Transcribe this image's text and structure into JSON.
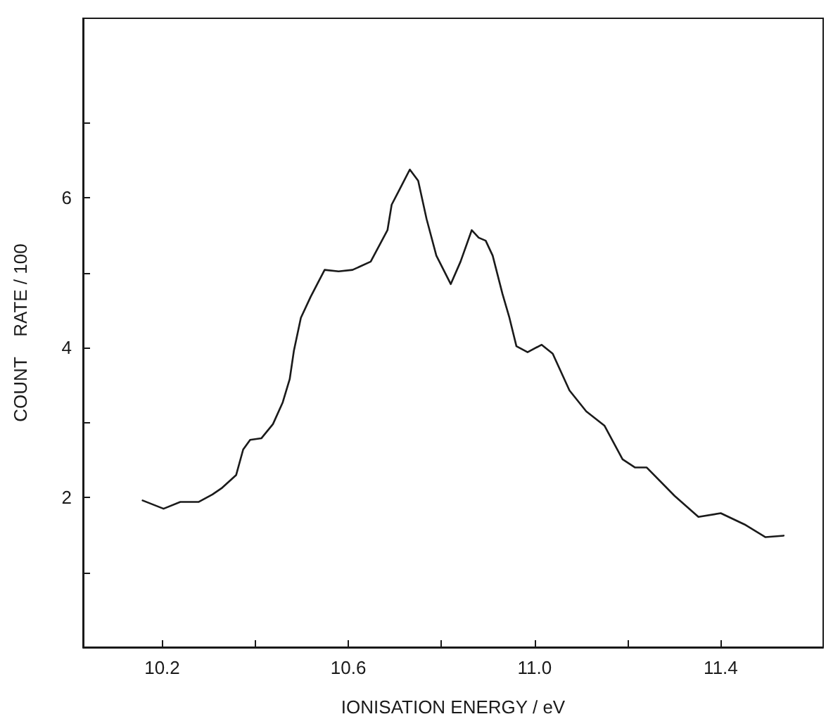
{
  "chart_data": {
    "type": "line",
    "xlabel": "IONISATION ENERGY / eV",
    "ylabel": "COUNT    RATE / 100",
    "x": [
      10.158,
      10.203,
      10.239,
      10.278,
      10.308,
      10.329,
      10.359,
      10.374,
      10.389,
      10.413,
      10.438,
      10.459,
      10.474,
      10.483,
      10.498,
      10.519,
      10.549,
      10.579,
      10.609,
      10.648,
      10.684,
      10.693,
      10.708,
      10.732,
      10.75,
      10.768,
      10.789,
      10.82,
      10.841,
      10.865,
      10.88,
      10.895,
      10.91,
      10.931,
      10.946,
      10.961,
      10.985,
      11.015,
      11.039,
      11.075,
      11.111,
      11.15,
      11.189,
      11.216,
      11.241,
      11.301,
      11.352,
      11.4,
      11.451,
      11.496,
      11.535
    ],
    "series": [
      {
        "color": "#1a1a1a",
        "values": [
          1.96,
          1.85,
          1.94,
          1.94,
          2.04,
          2.13,
          2.3,
          2.64,
          2.77,
          2.79,
          2.98,
          3.27,
          3.58,
          3.96,
          4.4,
          4.68,
          5.04,
          5.02,
          5.04,
          5.15,
          5.57,
          5.91,
          6.09,
          6.38,
          6.23,
          5.72,
          5.23,
          4.85,
          5.15,
          5.57,
          5.47,
          5.43,
          5.23,
          4.72,
          4.4,
          4.02,
          3.94,
          4.04,
          3.92,
          3.43,
          3.15,
          2.96,
          2.51,
          2.4,
          2.4,
          2.02,
          1.74,
          1.79,
          1.64,
          1.47,
          1.49
        ]
      }
    ],
    "xlim": [
      10.03,
      11.62
    ],
    "ylim": [
      0,
      8.4
    ],
    "xticks": [
      10.2,
      {
        "value": 10.4,
        "label": null
      },
      10.6,
      {
        "value": 10.8,
        "label": null
      },
      {
        "value": 11,
        "label": "11.0"
      },
      {
        "value": 11.2,
        "label": null
      },
      11.4
    ],
    "yticks": [
      {
        "value": 1,
        "label": null
      },
      2,
      {
        "value": 3,
        "label": null
      },
      4,
      {
        "value": 5,
        "label": null
      },
      6,
      {
        "value": 7,
        "label": null
      }
    ],
    "grid": false,
    "marker": "none",
    "line_style": "solid"
  }
}
